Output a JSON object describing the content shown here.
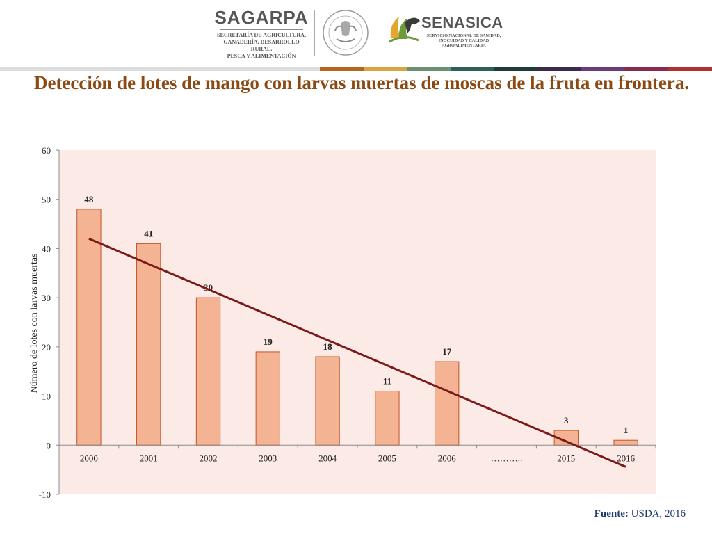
{
  "header": {
    "sagarpa_name": "SAGARPA",
    "sagarpa_subtitle": "SECRETARÍA DE AGRICULTURA,\nGANADERÍA, DESARROLLO RURAL,\nPESCA Y ALIMENTACIÓN",
    "senasica_name": "SENASICA",
    "senasica_subtitle": "SERVICIO NACIONAL DE SANIDAD,\nINOCUIDAD Y CALIDAD\nAGROALIMENTARIA",
    "band_colors": [
      "#b5651d",
      "#d9a441",
      "#6a8f73",
      "#2f5e5b",
      "#1f3b3a",
      "#3b2a4e",
      "#6b3b7a",
      "#8a2b4d",
      "#b03030"
    ]
  },
  "title": "Detección de lotes de mango con larvas muertas de moscas de la fruta en frontera.",
  "source": {
    "label": "Fuente:",
    "value": "USDA, 2016"
  },
  "chart_data": {
    "type": "bar",
    "categories": [
      "2000",
      "2001",
      "2002",
      "2003",
      "2004",
      "2005",
      "2006",
      "………..",
      "2015",
      "2016"
    ],
    "values": [
      48,
      41,
      30,
      19,
      18,
      11,
      17,
      null,
      3,
      1
    ],
    "data_labels": [
      "48",
      "41",
      "30",
      "19",
      "18",
      "11",
      "17",
      "",
      "3",
      "1"
    ],
    "ylabel": "Número de lotes con larvas muertas",
    "xlabel": "",
    "ylim": [
      -10,
      60
    ],
    "yticks": [
      -10,
      0,
      10,
      20,
      30,
      40,
      50,
      60
    ],
    "trendline": {
      "type": "linear",
      "start": 42,
      "end": -4.4
    },
    "colors": {
      "bar_fill": "#f4b393",
      "bar_stroke": "#c0562a",
      "plot_bg": "#fbeae5",
      "trend": "#7a1a1a"
    },
    "grid": false
  }
}
